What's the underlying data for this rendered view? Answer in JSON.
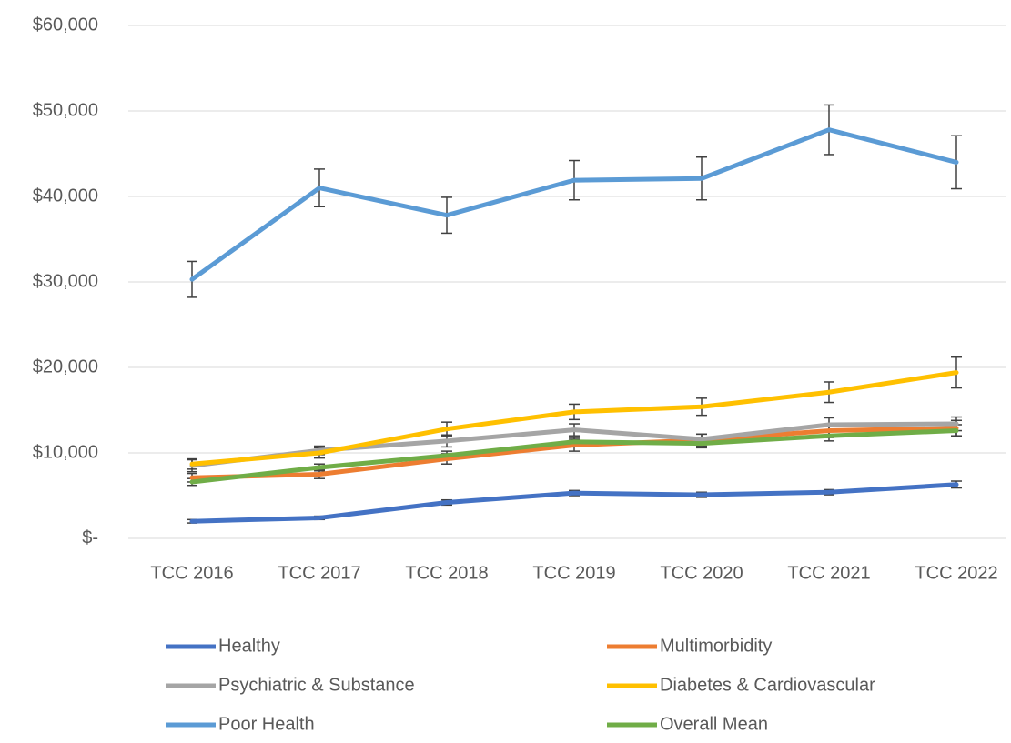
{
  "chart_data": {
    "type": "line",
    "categories": [
      "TCC 2016",
      "TCC 2017",
      "TCC 2018",
      "TCC 2019",
      "TCC 2020",
      "TCC 2021",
      "TCC 2022"
    ],
    "ylim": [
      0,
      60000
    ],
    "yticks": [
      {
        "value": 0,
        "label": "$-"
      },
      {
        "value": 10000,
        "label": "$10,000"
      },
      {
        "value": 20000,
        "label": "$20,000"
      },
      {
        "value": 30000,
        "label": "$30,000"
      },
      {
        "value": 40000,
        "label": "$40,000"
      },
      {
        "value": 50000,
        "label": "$50,000"
      },
      {
        "value": 60000,
        "label": "$60,000"
      }
    ],
    "grid": true,
    "legend": "bottom",
    "series": [
      {
        "name": "Healthy",
        "color": "#4472c4",
        "values": [
          2000,
          2400,
          4200,
          5300,
          5100,
          5400,
          6300
        ],
        "errors": [
          200,
          200,
          300,
          300,
          300,
          300,
          400
        ]
      },
      {
        "name": "Multimorbidity",
        "color": "#ed7d31",
        "values": [
          7100,
          7500,
          9300,
          10900,
          11500,
          12600,
          12900
        ],
        "errors": [
          500,
          500,
          600,
          700,
          700,
          800,
          900
        ]
      },
      {
        "name": "Psychiatric & Substance",
        "color": "#a5a5a5",
        "values": [
          8500,
          10300,
          11400,
          12700,
          11600,
          13300,
          13400
        ],
        "errors": [
          700,
          500,
          700,
          700,
          600,
          800,
          800
        ]
      },
      {
        "name": "Diabetes & Cardiovascular",
        "color": "#ffc000",
        "values": [
          8700,
          10000,
          12800,
          14800,
          15400,
          17100,
          19400
        ],
        "errors": [
          600,
          600,
          800,
          900,
          1000,
          1200,
          1800
        ]
      },
      {
        "name": "Poor Health",
        "color": "#5b9bd5",
        "values": [
          30300,
          41000,
          37800,
          41900,
          42100,
          47800,
          44000
        ],
        "errors": [
          2100,
          2200,
          2100,
          2300,
          2500,
          2900,
          3100
        ]
      },
      {
        "name": "Overall Mean",
        "color": "#70ad47",
        "values": [
          6600,
          8300,
          9700,
          11300,
          11100,
          12000,
          12600
        ],
        "errors": [
          400,
          400,
          500,
          500,
          500,
          600,
          700
        ]
      }
    ]
  }
}
